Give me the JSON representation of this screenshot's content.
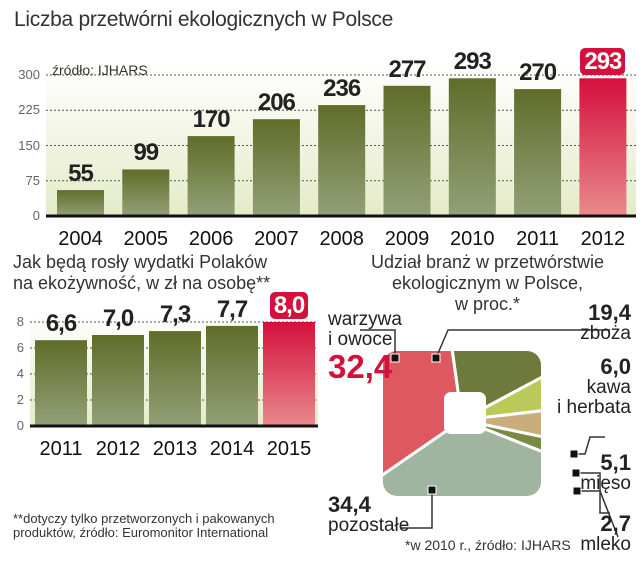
{
  "chart_data": [
    {
      "type": "bar",
      "title": "Liczba przetwórni ekologicznych w Polsce",
      "source": "źródło: IJHARS",
      "categories": [
        "2004",
        "2005",
        "2006",
        "2007",
        "2008",
        "2009",
        "2010",
        "2011",
        "2012"
      ],
      "values": [
        55,
        99,
        170,
        206,
        236,
        277,
        293,
        270,
        293
      ],
      "value_labels": [
        "55",
        "99",
        "170",
        "206",
        "236",
        "277",
        "293",
        "270",
        "293"
      ],
      "highlight_index": 8,
      "ylim": [
        0,
        300
      ],
      "yticks": [
        "0",
        "75",
        "150",
        "225",
        "300"
      ],
      "grid": "dotted"
    },
    {
      "type": "bar",
      "title_lines": [
        "Jak będą rosły wydatki Polaków",
        "na ekożywność, w zł na osobę**"
      ],
      "categories": [
        "2011",
        "2012",
        "2013",
        "2014",
        "2015"
      ],
      "values": [
        6.6,
        7.0,
        7.3,
        7.7,
        8.0
      ],
      "value_labels": [
        "6,6",
        "7,0",
        "7,3",
        "7,7",
        "8,0"
      ],
      "highlight_index": 4,
      "ylim": [
        0,
        8
      ],
      "yticks": [
        "0",
        "2",
        "4",
        "6",
        "8"
      ],
      "footnote_lines": [
        "**dotyczy tylko przetworzonych i pakowanych",
        "produktów, źródło: Euromonitor International"
      ]
    },
    {
      "type": "pie",
      "title_lines": [
        "Udział branż w przetwórstwie",
        "ekologicznym w Polsce,",
        "w proc.*"
      ],
      "slices": [
        {
          "label": "zboża",
          "value": 19.4,
          "value_label": "19,4"
        },
        {
          "label": "kawa i herbata",
          "label_lines": [
            "kawa",
            "i herbata"
          ],
          "value": 6.0,
          "value_label": "6,0"
        },
        {
          "label": "mięso",
          "value": 5.1,
          "value_label": "5,1"
        },
        {
          "label": "mleko",
          "value": 2.7,
          "value_label": "2,7"
        },
        {
          "label": "pozostałe",
          "value": 34.4,
          "value_label": "34,4"
        },
        {
          "label": "warzywa i owoce",
          "label_lines": [
            "warzywa",
            "i owoce"
          ],
          "value": 32.4,
          "value_label": "32,4"
        }
      ],
      "footnote": "*w 2010 r., źródło: IJHARS"
    }
  ],
  "colors": {
    "bar": "#6b7a35",
    "highlight": "#d4103c",
    "pie": [
      "#6e7a3c",
      "#b9c95a",
      "#c9ad7c",
      "#7a8a44",
      "#9fb59f",
      "#dd5860"
    ]
  }
}
